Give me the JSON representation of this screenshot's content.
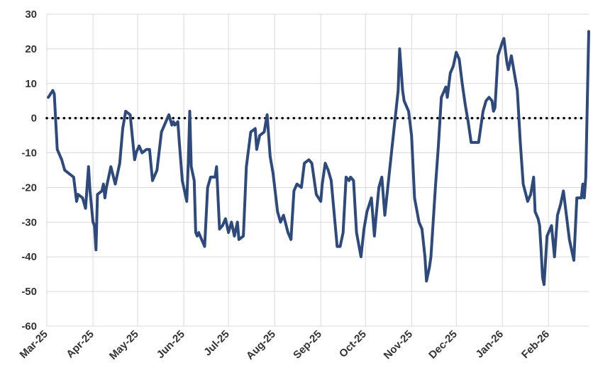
{
  "chart_data": {
    "type": "line",
    "title": "",
    "xlabel": "",
    "ylabel": "",
    "ylim": [
      -60,
      30
    ],
    "yticks": [
      30,
      20,
      10,
      0,
      -10,
      -20,
      -30,
      -40,
      -50,
      -60
    ],
    "xticks": [
      "Mar-25",
      "Apr-25",
      "May-25",
      "Jun-25",
      "Jul-25",
      "Aug-25",
      "Sep-25",
      "Oct-25",
      "Nov-25",
      "Dec-25",
      "Jan-26",
      "Feb-26"
    ],
    "grid": true,
    "legend": "none",
    "reference_line": {
      "y": 0,
      "style": "dotted",
      "color": "#000000"
    },
    "series": [
      {
        "color": "#2e4a7d",
        "points": [
          [
            "2025-03-02",
            6
          ],
          [
            "2025-03-05",
            8
          ],
          [
            "2025-03-06",
            7
          ],
          [
            "2025-03-08",
            -9
          ],
          [
            "2025-03-11",
            -12
          ],
          [
            "2025-03-13",
            -15
          ],
          [
            "2025-03-16",
            -16
          ],
          [
            "2025-03-19",
            -17
          ],
          [
            "2025-03-21",
            -24
          ],
          [
            "2025-03-22",
            -22
          ],
          [
            "2025-03-25",
            -23
          ],
          [
            "2025-03-27",
            -26
          ],
          [
            "2025-03-29",
            -14
          ],
          [
            "2025-03-30",
            -21
          ],
          [
            "2025-04-01",
            -30
          ],
          [
            "2025-04-02",
            -31
          ],
          [
            "2025-04-03",
            -38
          ],
          [
            "2025-04-04",
            -22
          ],
          [
            "2025-04-07",
            -21
          ],
          [
            "2025-04-08",
            -19
          ],
          [
            "2025-04-09",
            -23
          ],
          [
            "2025-04-10",
            -20
          ],
          [
            "2025-04-13",
            -14
          ],
          [
            "2025-04-16",
            -19
          ],
          [
            "2025-04-19",
            -13
          ],
          [
            "2025-04-21",
            -3
          ],
          [
            "2025-04-23",
            2
          ],
          [
            "2025-04-26",
            1
          ],
          [
            "2025-04-29",
            -12
          ],
          [
            "2025-04-30",
            -10
          ],
          [
            "2025-05-02",
            -8
          ],
          [
            "2025-05-04",
            -10
          ],
          [
            "2025-05-07",
            -9
          ],
          [
            "2025-05-09",
            -9
          ],
          [
            "2025-05-11",
            -18
          ],
          [
            "2025-05-14",
            -15
          ],
          [
            "2025-05-17",
            -4
          ],
          [
            "2025-05-19",
            -2
          ],
          [
            "2025-05-22",
            1
          ],
          [
            "2025-05-24",
            -2
          ],
          [
            "2025-05-25",
            -1
          ],
          [
            "2025-05-26",
            -2
          ],
          [
            "2025-05-28",
            -1
          ],
          [
            "2025-05-29",
            -7
          ],
          [
            "2025-05-31",
            -18
          ],
          [
            "2025-06-03",
            -24
          ],
          [
            "2025-06-04",
            -13
          ],
          [
            "2025-06-05",
            2
          ],
          [
            "2025-06-06",
            -14
          ],
          [
            "2025-06-08",
            -18
          ],
          [
            "2025-06-09",
            -33
          ],
          [
            "2025-06-10",
            -34
          ],
          [
            "2025-06-11",
            -33
          ],
          [
            "2025-06-13",
            -35
          ],
          [
            "2025-06-15",
            -37
          ],
          [
            "2025-06-17",
            -20
          ],
          [
            "2025-06-19",
            -17
          ],
          [
            "2025-06-22",
            -17
          ],
          [
            "2025-06-23",
            -14
          ],
          [
            "2025-06-25",
            -32
          ],
          [
            "2025-06-27",
            -31
          ],
          [
            "2025-06-29",
            -29
          ],
          [
            "2025-07-01",
            -33
          ],
          [
            "2025-07-03",
            -30
          ],
          [
            "2025-07-05",
            -34
          ],
          [
            "2025-07-07",
            -30
          ],
          [
            "2025-07-08",
            -35
          ],
          [
            "2025-07-11",
            -34
          ],
          [
            "2025-07-13",
            -14
          ],
          [
            "2025-07-16",
            -4
          ],
          [
            "2025-07-19",
            -3
          ],
          [
            "2025-07-20",
            -9
          ],
          [
            "2025-07-22",
            -5
          ],
          [
            "2025-07-25",
            -4
          ],
          [
            "2025-07-27",
            1
          ],
          [
            "2025-07-29",
            -11
          ],
          [
            "2025-07-31",
            -16
          ],
          [
            "2025-08-03",
            -27
          ],
          [
            "2025-08-05",
            -30
          ],
          [
            "2025-08-07",
            -28
          ],
          [
            "2025-08-10",
            -33
          ],
          [
            "2025-08-12",
            -35
          ],
          [
            "2025-08-14",
            -21
          ],
          [
            "2025-08-16",
            -19
          ],
          [
            "2025-08-19",
            -20
          ],
          [
            "2025-08-21",
            -13
          ],
          [
            "2025-08-24",
            -12
          ],
          [
            "2025-08-26",
            -13
          ],
          [
            "2025-08-29",
            -22
          ],
          [
            "2025-09-01",
            -24
          ],
          [
            "2025-09-02",
            -19
          ],
          [
            "2025-09-04",
            -13
          ],
          [
            "2025-09-06",
            -15
          ],
          [
            "2025-09-08",
            -18
          ],
          [
            "2025-09-12",
            -37
          ],
          [
            "2025-09-14",
            -37
          ],
          [
            "2025-09-16",
            -33
          ],
          [
            "2025-09-18",
            -17
          ],
          [
            "2025-09-20",
            -18
          ],
          [
            "2025-09-21",
            -17
          ],
          [
            "2025-09-23",
            -18
          ],
          [
            "2025-09-25",
            -33
          ],
          [
            "2025-09-28",
            -40
          ],
          [
            "2025-09-30",
            -32
          ],
          [
            "2025-10-02",
            -27
          ],
          [
            "2025-10-05",
            -23
          ],
          [
            "2025-10-07",
            -34
          ],
          [
            "2025-10-08",
            -29
          ],
          [
            "2025-10-10",
            -20
          ],
          [
            "2025-10-12",
            -17
          ],
          [
            "2025-10-14",
            -28
          ],
          [
            "2025-10-19",
            -8
          ],
          [
            "2025-10-23",
            8
          ],
          [
            "2025-10-24",
            20
          ],
          [
            "2025-10-26",
            8
          ],
          [
            "2025-10-27",
            5
          ],
          [
            "2025-10-30",
            2
          ],
          [
            "2025-11-01",
            -5
          ],
          [
            "2025-11-03",
            -23
          ],
          [
            "2025-11-06",
            -30
          ],
          [
            "2025-11-08",
            -32
          ],
          [
            "2025-11-10",
            -40
          ],
          [
            "2025-11-11",
            -47
          ],
          [
            "2025-11-13",
            -43
          ],
          [
            "2025-11-14",
            -40
          ],
          [
            "2025-11-17",
            -20
          ],
          [
            "2025-11-19",
            -8
          ],
          [
            "2025-11-21",
            6
          ],
          [
            "2025-11-24",
            9
          ],
          [
            "2025-11-25",
            6
          ],
          [
            "2025-11-27",
            13
          ],
          [
            "2025-11-29",
            15
          ],
          [
            "2025-12-01",
            19
          ],
          [
            "2025-12-03",
            17
          ],
          [
            "2025-12-05",
            10
          ],
          [
            "2025-12-07",
            4
          ],
          [
            "2025-12-09",
            -1
          ],
          [
            "2025-12-11",
            -7
          ],
          [
            "2025-12-13",
            -7
          ],
          [
            "2025-12-16",
            -7
          ],
          [
            "2025-12-17",
            -4
          ],
          [
            "2025-12-19",
            2
          ],
          [
            "2025-12-21",
            5
          ],
          [
            "2025-12-23",
            6
          ],
          [
            "2025-12-25",
            5
          ],
          [
            "2025-12-26",
            2
          ],
          [
            "2025-12-27",
            3
          ],
          [
            "2025-12-29",
            18
          ],
          [
            "2026-01-01",
            22
          ],
          [
            "2026-01-02",
            23
          ],
          [
            "2026-01-04",
            16
          ],
          [
            "2026-01-05",
            14
          ],
          [
            "2026-01-07",
            18
          ],
          [
            "2026-01-09",
            13
          ],
          [
            "2026-01-11",
            8
          ],
          [
            "2026-01-13",
            -7
          ],
          [
            "2026-01-15",
            -19
          ],
          [
            "2026-01-18",
            -24
          ],
          [
            "2026-01-20",
            -22
          ],
          [
            "2026-01-22",
            -17
          ],
          [
            "2026-01-23",
            -27
          ],
          [
            "2026-01-25",
            -29
          ],
          [
            "2026-01-26",
            -31
          ],
          [
            "2026-01-27",
            -38
          ],
          [
            "2026-01-28",
            -46
          ],
          [
            "2026-01-29",
            -48
          ],
          [
            "2026-01-31",
            -34
          ],
          [
            "2026-02-03",
            -31
          ],
          [
            "2026-02-05",
            -40
          ],
          [
            "2026-02-07",
            -28
          ],
          [
            "2026-02-09",
            -25
          ],
          [
            "2026-02-11",
            -21
          ],
          [
            "2026-02-13",
            -28
          ],
          [
            "2026-02-15",
            -35
          ],
          [
            "2026-02-18",
            -41
          ],
          [
            "2026-02-20",
            -23
          ],
          [
            "2026-02-23",
            -23
          ],
          [
            "2026-02-24",
            -19
          ],
          [
            "2026-02-25",
            -23
          ],
          [
            "2026-02-26",
            -17
          ],
          [
            "2026-02-28",
            25
          ]
        ]
      }
    ]
  }
}
